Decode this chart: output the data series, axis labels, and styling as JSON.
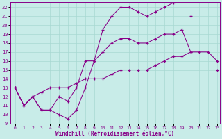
{
  "xlabel": "Windchill (Refroidissement éolien,°C)",
  "bg_color": "#c8ece8",
  "grid_color": "#a8d8d2",
  "line_color": "#880088",
  "xlim": [
    -0.5,
    23.3
  ],
  "ylim": [
    9,
    22.6
  ],
  "xticks": [
    0,
    1,
    2,
    3,
    4,
    5,
    6,
    7,
    8,
    9,
    10,
    11,
    12,
    13,
    14,
    15,
    16,
    17,
    18,
    19,
    20,
    21,
    22,
    23
  ],
  "yticks": [
    9,
    10,
    11,
    12,
    13,
    14,
    15,
    16,
    17,
    18,
    19,
    20,
    21,
    22
  ],
  "line_top_x": [
    0,
    1,
    2,
    3,
    4,
    5,
    6,
    7,
    8,
    9,
    10,
    11,
    12,
    13,
    14,
    15,
    16,
    17,
    18,
    19,
    20,
    21,
    22,
    23
  ],
  "line_top_y": [
    13,
    11,
    12,
    10.5,
    10.5,
    10,
    9.5,
    10.5,
    13,
    16,
    19.5,
    21,
    22,
    22,
    21.5,
    21,
    21.5,
    22,
    22.5,
    null,
    21,
    null,
    null,
    null
  ],
  "line_mid_x": [
    0,
    1,
    2,
    3,
    4,
    5,
    6,
    7,
    8,
    9,
    10,
    11,
    12,
    13,
    14,
    15,
    16,
    17,
    18,
    19,
    20,
    21,
    22,
    23
  ],
  "line_mid_y": [
    13,
    11,
    12,
    10.5,
    10.5,
    12,
    11.5,
    13,
    16,
    16,
    17,
    18,
    18.5,
    18.5,
    18,
    18,
    18.5,
    19,
    19,
    19.5,
    17,
    17,
    17,
    16
  ],
  "line_bot_x": [
    0,
    1,
    2,
    3,
    4,
    5,
    6,
    7,
    8,
    9,
    10,
    11,
    12,
    13,
    14,
    15,
    16,
    17,
    18,
    19,
    20,
    21,
    22,
    23
  ],
  "line_bot_y": [
    13,
    11,
    12,
    12.5,
    13,
    13,
    13,
    13.5,
    14,
    14,
    14,
    14.5,
    15,
    15,
    15,
    15,
    15.5,
    16,
    16.5,
    16.5,
    17,
    null,
    null,
    15
  ]
}
